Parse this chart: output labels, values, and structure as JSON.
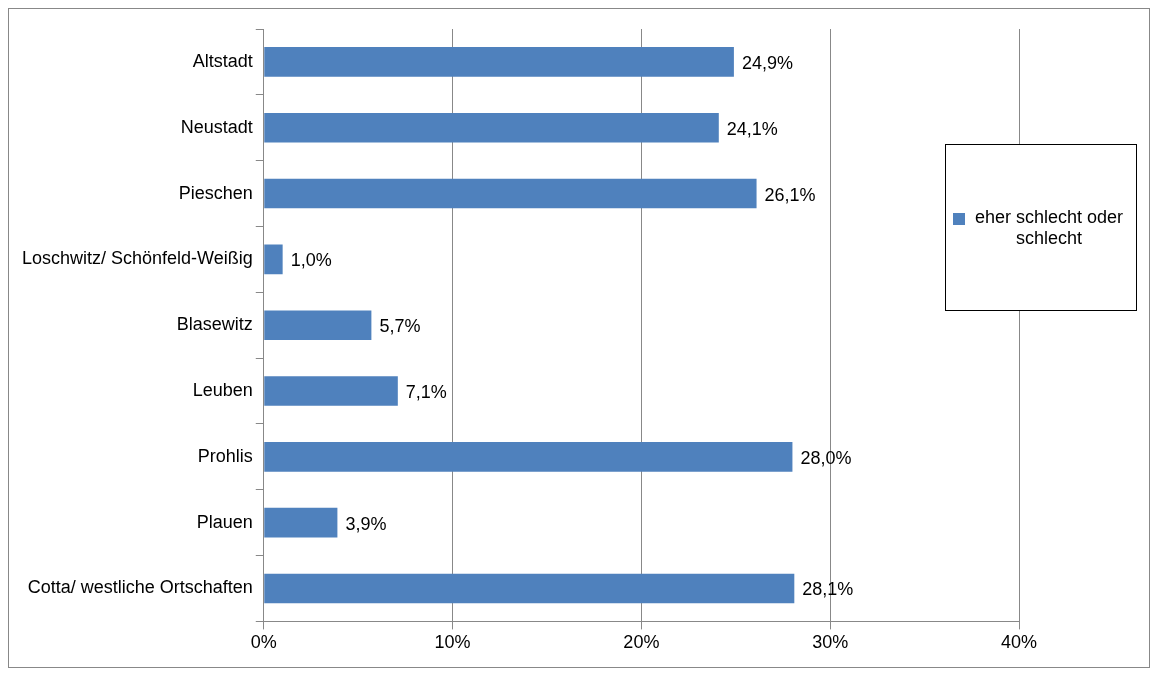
{
  "chart_data": {
    "type": "bar",
    "orientation": "horizontal",
    "categories": [
      "Altstadt",
      "Neustadt",
      "Pieschen",
      "Loschwitz/ Schönfeld-Weißig",
      "Blasewitz",
      "Leuben",
      "Prohlis",
      "Plauen",
      "Cotta/ westliche Ortschaften"
    ],
    "series": [
      {
        "name": "eher schlecht oder schlecht",
        "color": "#4f81bd",
        "values": [
          24.9,
          24.1,
          26.1,
          1.0,
          5.7,
          7.1,
          28.0,
          3.9,
          28.1
        ],
        "value_labels": [
          "24,9%",
          "24,1%",
          "26,1%",
          "1,0%",
          "5,7%",
          "7,1%",
          "28,0%",
          "3,9%",
          "28,1%"
        ]
      }
    ],
    "xlim": [
      0,
      40
    ],
    "xticks": [
      {
        "value": 0,
        "label": "0%"
      },
      {
        "value": 10,
        "label": "10%"
      },
      {
        "value": 20,
        "label": "20%"
      },
      {
        "value": 30,
        "label": "30%"
      },
      {
        "value": 40,
        "label": "40%"
      }
    ],
    "grid": "x",
    "legend": "right"
  }
}
